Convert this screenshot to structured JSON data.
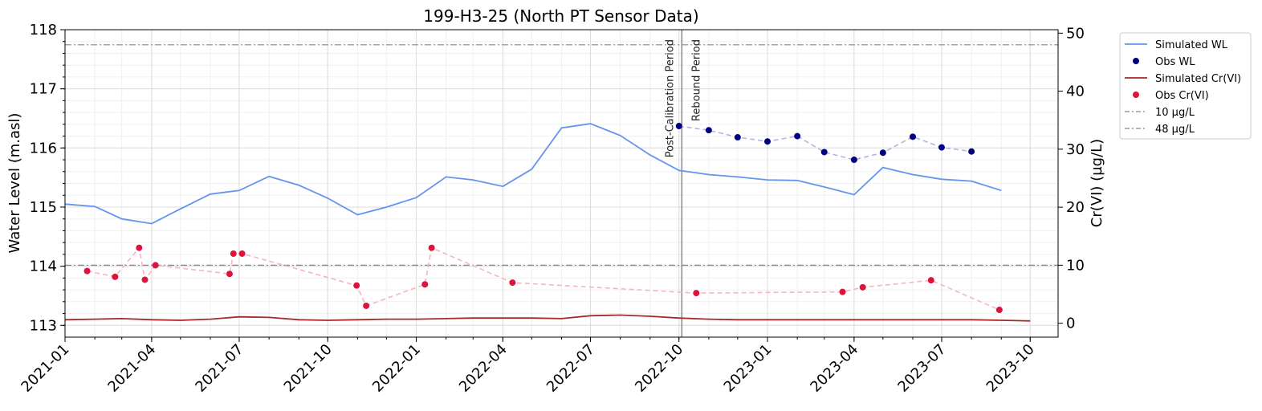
{
  "chart_data": {
    "type": "line",
    "title": "199-H3-25 (North PT Sensor Data)",
    "ylabel": "Water Level (m.asl)",
    "y2label": "Cr(VI) (µg/L)",
    "xlim": [
      "2021-01-01",
      "2023-10-30"
    ],
    "ylim": [
      112.8,
      118
    ],
    "y2lim": [
      -2.4,
      50.6
    ],
    "x_ticks": [
      "2021-01",
      "2021-04",
      "2021-07",
      "2021-10",
      "2022-01",
      "2022-04",
      "2022-07",
      "2022-10",
      "2023-01",
      "2023-04",
      "2023-07",
      "2023-10"
    ],
    "y_ticks": [
      113,
      114,
      115,
      116,
      117,
      118
    ],
    "y2_ticks": [
      0,
      10,
      20,
      30,
      40,
      50
    ],
    "grid": true,
    "legend_position": "outside-right",
    "vlines": [
      {
        "date": "2022-10-04",
        "label": "Post-Calibration Period",
        "side": "left"
      },
      {
        "date": "2022-10-04",
        "label": "Rebound Period",
        "side": "right"
      }
    ],
    "hlines": [
      {
        "value": 10,
        "label": "10 µg/L",
        "axis": "y2",
        "color": "#888888"
      },
      {
        "value": 48,
        "label": "48 µg/L",
        "axis": "y2",
        "color": "#888888"
      }
    ],
    "series": [
      {
        "name": "Simulated WL",
        "axis": "y1",
        "style": "line",
        "color": "#6495ed",
        "x": [
          "2021-01-01",
          "2021-02-01",
          "2021-03-01",
          "2021-04-01",
          "2021-05-01",
          "2021-06-01",
          "2021-07-01",
          "2021-08-01",
          "2021-09-01",
          "2021-10-01",
          "2021-11-01",
          "2021-12-01",
          "2022-01-01",
          "2022-02-01",
          "2022-03-01",
          "2022-04-01",
          "2022-05-01",
          "2022-06-01",
          "2022-07-01",
          "2022-08-01",
          "2022-09-01",
          "2022-10-01",
          "2022-11-01",
          "2022-12-01",
          "2023-01-01",
          "2023-02-01",
          "2023-03-01",
          "2023-04-01",
          "2023-05-01",
          "2023-06-01",
          "2023-07-01",
          "2023-08-01",
          "2023-09-01"
        ],
        "y": [
          115.05,
          115.01,
          114.8,
          114.72,
          114.97,
          115.22,
          115.28,
          115.52,
          115.37,
          115.15,
          114.87,
          115.0,
          115.16,
          115.51,
          115.46,
          115.35,
          115.64,
          116.34,
          116.41,
          116.21,
          115.88,
          115.62,
          115.55,
          115.51,
          115.46,
          115.45,
          115.34,
          115.21,
          115.67,
          115.55,
          115.47,
          115.44,
          115.28
        ]
      },
      {
        "name": "Obs WL",
        "axis": "y1",
        "style": "markers-dashed",
        "color": "#000080",
        "line_color": "#b4b4dc",
        "x": [
          "2022-10-01",
          "2022-11-01",
          "2022-12-01",
          "2023-01-01",
          "2023-02-01",
          "2023-03-01",
          "2023-04-01",
          "2023-05-01",
          "2023-06-01",
          "2023-07-01",
          "2023-08-01"
        ],
        "y": [
          116.37,
          116.3,
          116.18,
          116.11,
          116.2,
          115.93,
          115.8,
          115.92,
          116.19,
          116.01,
          115.94
        ]
      },
      {
        "name": "Simulated Cr(VI)",
        "axis": "y2",
        "style": "line",
        "color": "#a52a2a",
        "x": [
          "2021-01-01",
          "2021-02-01",
          "2021-03-01",
          "2021-04-01",
          "2021-05-01",
          "2021-06-01",
          "2021-07-01",
          "2021-08-01",
          "2021-09-01",
          "2021-10-01",
          "2021-11-01",
          "2021-12-01",
          "2022-01-01",
          "2022-02-01",
          "2022-03-01",
          "2022-04-01",
          "2022-05-01",
          "2022-06-01",
          "2022-07-01",
          "2022-08-01",
          "2022-09-01",
          "2022-10-01",
          "2022-11-01",
          "2022-12-01",
          "2023-01-01",
          "2023-02-01",
          "2023-03-01",
          "2023-04-01",
          "2023-05-01",
          "2023-06-01",
          "2023-07-01",
          "2023-08-01",
          "2023-09-01",
          "2023-10-01"
        ],
        "y": [
          0.6,
          0.7,
          0.8,
          0.6,
          0.5,
          0.7,
          1.1,
          1.0,
          0.6,
          0.5,
          0.6,
          0.7,
          0.7,
          0.8,
          0.9,
          0.9,
          0.9,
          0.8,
          1.3,
          1.4,
          1.2,
          0.9,
          0.7,
          0.6,
          0.6,
          0.6,
          0.6,
          0.6,
          0.6,
          0.6,
          0.6,
          0.6,
          0.5,
          0.4
        ]
      },
      {
        "name": "Obs Cr(VI)",
        "axis": "y2",
        "style": "markers-dashed",
        "color": "#dc143c",
        "line_color": "#f4b6c2",
        "x": [
          "2021-01-24",
          "2021-02-22",
          "2021-03-19",
          "2021-03-25",
          "2021-04-05",
          "2021-06-21",
          "2021-06-25",
          "2021-07-04",
          "2021-10-31",
          "2021-11-10",
          "2022-01-10",
          "2022-01-17",
          "2022-04-11",
          "2022-10-19",
          "2023-03-20",
          "2023-04-10",
          "2023-06-20",
          "2023-08-30"
        ],
        "y": [
          9,
          8,
          13,
          7.5,
          10,
          8.5,
          12,
          12,
          6.5,
          3,
          6.7,
          13,
          7,
          5.2,
          5.4,
          6.2,
          7.4,
          2.3
        ]
      }
    ]
  }
}
